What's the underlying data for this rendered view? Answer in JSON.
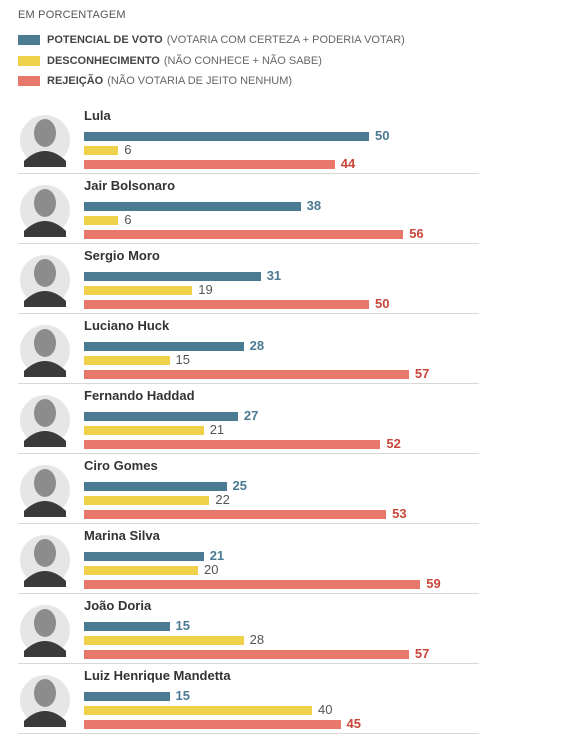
{
  "unit_note": "EM PORCENTAGEM",
  "legend": [
    {
      "key": "potencial",
      "title": "POTENCIAL DE VOTO",
      "desc": "(VOTARIA COM CERTEZA + PODERIA VOTAR)",
      "color": "#4b7a93"
    },
    {
      "key": "desconhecimento",
      "title": "DESCONHECIMENTO",
      "desc": "(NÃO CONHECE + NÃO SABE)",
      "color": "#f0d24a"
    },
    {
      "key": "rejeicao",
      "title": "REJEIÇÃO",
      "desc": "(NÃO VOTARIA DE JEITO NENHUM)",
      "color": "#e9786c"
    }
  ],
  "chart_data": {
    "type": "bar",
    "orientation": "horizontal",
    "categories": [
      "Lula",
      "Jair Bolsonaro",
      "Sergio Moro",
      "Luciano Huck",
      "Fernando Haddad",
      "Ciro Gomes",
      "Marina Silva",
      "João Doria",
      "Luiz Henrique Mandetta"
    ],
    "series": [
      {
        "name": "POTENCIAL DE VOTO",
        "color": "#4b7a93",
        "label_color": "#4b7a93",
        "values": [
          50,
          38,
          31,
          28,
          27,
          25,
          21,
          15,
          15
        ]
      },
      {
        "name": "DESCONHECIMENTO",
        "color": "#f0d24a",
        "label_color": "#555555",
        "values": [
          6,
          6,
          19,
          15,
          21,
          22,
          20,
          28,
          40
        ]
      },
      {
        "name": "REJEIÇÃO",
        "color": "#e9786c",
        "label_color": "#c9463a",
        "values": [
          44,
          56,
          50,
          57,
          52,
          53,
          59,
          57,
          45
        ]
      }
    ],
    "xlim": [
      0,
      100
    ],
    "grid": false,
    "legend_position": "top-left"
  }
}
